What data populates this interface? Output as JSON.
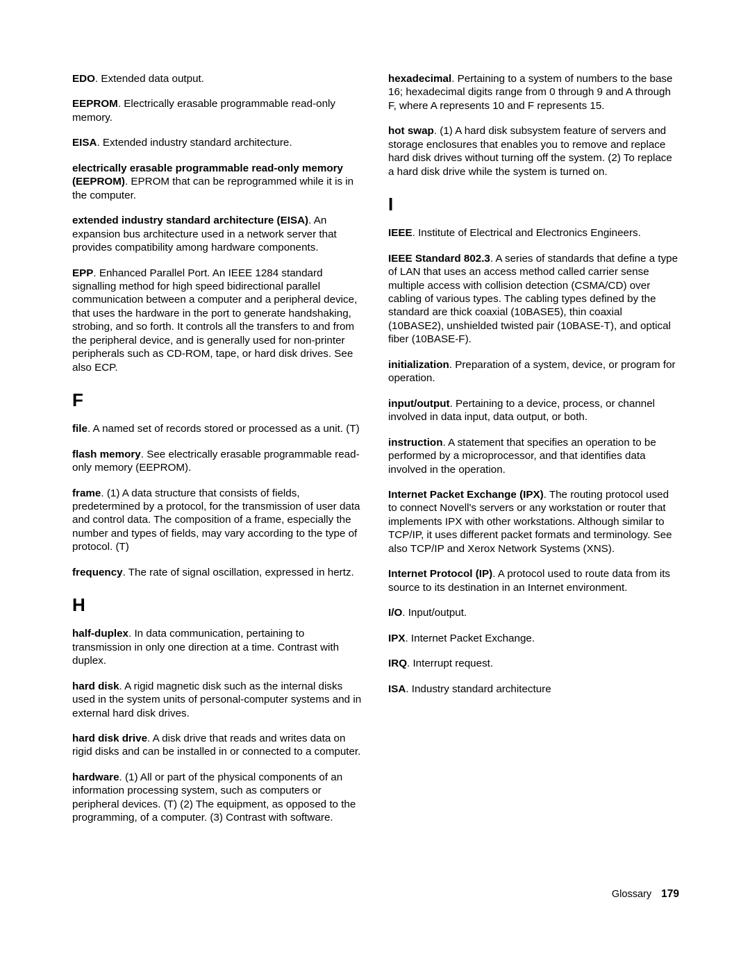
{
  "footer": {
    "label": "Glossary",
    "page": "179"
  },
  "sections": {
    "E_pre": [
      {
        "term": "EDO",
        "def": ".  Extended data output."
      },
      {
        "term": "EEPROM",
        "def": ".  Electrically erasable programmable read-only memory."
      },
      {
        "term": "EISA",
        "def": ".  Extended industry standard architecture."
      },
      {
        "term": "electrically erasable programmable read-only memory (EEPROM)",
        "def": ".   EPROM that can be reprogrammed while it is in the computer."
      },
      {
        "term": "extended industry standard architecture (EISA)",
        "def": ".  An expansion bus architecture used in a network server that provides compatibility among hardware components."
      },
      {
        "term": "EPP",
        "def": ".  Enhanced Parallel Port.  An IEEE 1284 standard signalling method for high speed bidirectional parallel communication between a computer and a peripheral device, that uses the hardware in the port to generate handshaking, strobing, and so forth.  It controls all the transfers to and from the peripheral device, and is generally used for non-printer peripherals such as CD-ROM, tape, or hard disk drives.  See also ECP."
      }
    ],
    "F": {
      "letter": "F",
      "entries": [
        {
          "term": "file",
          "def": ".  A named set of records stored or processed as a unit.  (T)"
        },
        {
          "term": "flash memory",
          "def": ".  See electrically erasable programmable read-only memory (EEPROM)."
        },
        {
          "term": "frame",
          "def": ".  (1) A data structure that consists of fields, predetermined by a protocol, for the transmission of user data and control data.  The composition of a frame, especially the number and types of fields, may vary according to the type of protocol.  (T)"
        },
        {
          "term": "frequency",
          "def": ".  The rate of signal oscillation, expressed in hertz."
        }
      ]
    },
    "H": {
      "letter": "H",
      "entries": [
        {
          "term": "half-duplex",
          "def": ".  In data communication, pertaining to transmission in only one direction at a time.  Contrast with duplex."
        },
        {
          "term": "hard disk",
          "def": ".  A rigid magnetic disk such as the internal disks used in the system units of personal-computer systems and in external hard disk drives."
        },
        {
          "term": "hard disk drive",
          "def": ".   A disk drive that reads and writes data on rigid disks and can be installed in or connected to a computer."
        },
        {
          "term": "hardware",
          "def": ".  (1) All or part of the physical components of an information processing system, such as computers or peripheral devices.  (T) (2)  The equipment, as opposed to the programming, of a computer.  (3)  Contrast with software."
        },
        {
          "term": "hexadecimal",
          "def": ".  Pertaining to a system of numbers to the base 16;  hexadecimal digits range from 0 through 9 and A through F, where A represents 10 and F represents 15."
        },
        {
          "term": "hot swap",
          "def": ".  (1) A hard disk subsystem feature of servers and storage enclosures that enables you to remove and replace hard disk drives without turning off the system.  (2)  To replace a hard disk drive while the system is turned on."
        }
      ]
    },
    "I": {
      "letter": "I",
      "entries": [
        {
          "term": "IEEE",
          "def": ".  Institute of Electrical and Electronics Engineers."
        },
        {
          "term": "IEEE Standard 802.3",
          "def": ".  A series of standards that define a type of LAN that uses an access method called carrier sense multiple access with collision detection (CSMA/CD) over cabling of various types.  The cabling types defined by the standard are thick coaxial (10BASE5), thin coaxial (10BASE2), unshielded twisted pair (10BASE-T), and optical fiber (10BASE-F)."
        },
        {
          "term": "initialization",
          "def": ".   Preparation of a system, device, or program for operation."
        },
        {
          "term": "input/output",
          "def": ".   Pertaining to a device, process, or channel involved in data input, data output, or both."
        },
        {
          "term": "instruction",
          "def": ".  A statement that specifies an operation to be performed by a microprocessor, and that identifies data involved in the operation."
        },
        {
          "term": "Internet Packet Exchange (IPX)",
          "def": ".   The routing protocol used to connect Novell's servers or any workstation or router that implements IPX with other workstations. Although similar to TCP/IP, it uses different packet formats and terminology.  See also TCP/IP and Xerox Network Systems (XNS)."
        },
        {
          "term": "Internet Protocol (IP)",
          "def": ".  A protocol used to route data from its source to its destination in an Internet environment."
        },
        {
          "term": "I/O",
          "def": ".   Input/output."
        },
        {
          "term": "IPX",
          "def": ".   Internet Packet Exchange."
        },
        {
          "term": "IRQ",
          "def": ".   Interrupt request."
        },
        {
          "term": "ISA",
          "def": ".   Industry standard architecture"
        }
      ]
    }
  }
}
